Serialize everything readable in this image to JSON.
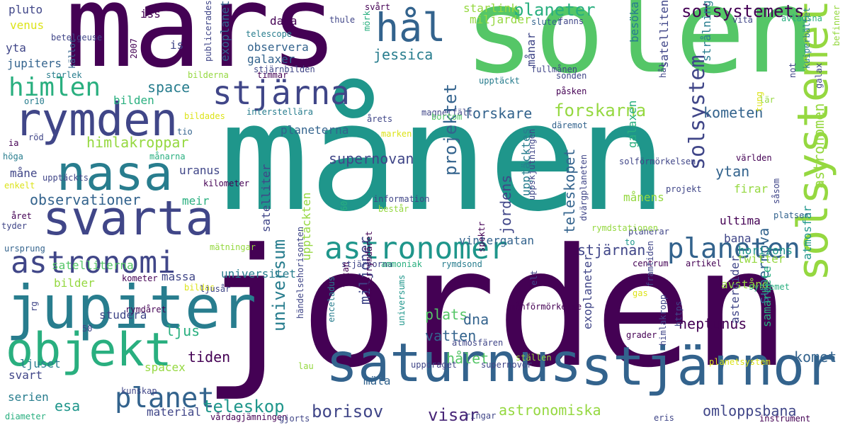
{
  "palette": [
    "#440154",
    "#482677",
    "#404688",
    "#33638d",
    "#287d8e",
    "#1f968b",
    "#29af7f",
    "#55c667",
    "#95d840",
    "#dce319"
  ],
  "words": [
    {
      "text": "månen",
      "color": "#1f968b"
    },
    {
      "text": "jorden",
      "color": "#440154"
    },
    {
      "text": "solen",
      "color": "#55c667"
    },
    {
      "text": "mars",
      "color": "#440154"
    },
    {
      "text": "saturnus",
      "color": "#33638d"
    },
    {
      "text": "stjärnor",
      "color": "#33638d"
    },
    {
      "text": "jupiter",
      "color": "#287d8e"
    },
    {
      "text": "objekt",
      "color": "#29af7f"
    },
    {
      "text": "svarta",
      "color": "#404688"
    },
    {
      "text": "rymden",
      "color": "#404688"
    },
    {
      "text": "nasa",
      "color": "#287d8e"
    },
    {
      "text": "solsystemet",
      "color": "#95d840"
    },
    {
      "text": "stjärna",
      "color": "#404688"
    },
    {
      "text": "hål",
      "color": "#33638d"
    },
    {
      "text": "astronomer",
      "color": "#1f968b"
    },
    {
      "text": "astronomi",
      "color": "#404688"
    },
    {
      "text": "planet",
      "color": "#33638d"
    },
    {
      "text": "planeten",
      "color": "#33638d"
    },
    {
      "text": "himlen",
      "color": "#29af7f"
    },
    {
      "text": "solsystem",
      "color": "#404688"
    },
    {
      "text": "solsystemets",
      "color": "#440154"
    },
    {
      "text": "planeter",
      "color": "#29af7f"
    },
    {
      "text": "forskarna",
      "color": "#95d840"
    },
    {
      "text": "projektet",
      "color": "#33638d"
    },
    {
      "text": "universum",
      "color": "#287d8e"
    },
    {
      "text": "teleskop",
      "color": "#1f968b"
    },
    {
      "text": "borisov",
      "color": "#404688"
    },
    {
      "text": "visar",
      "color": "#482677"
    },
    {
      "text": "astronomiska",
      "color": "#95d840"
    },
    {
      "text": "omloppsbana",
      "color": "#404688"
    },
    {
      "text": "esa",
      "color": "#1f968b"
    },
    {
      "text": "supernova",
      "color": "#33638d"
    },
    {
      "text": "neptunus",
      "color": "#440154"
    },
    {
      "text": "komet",
      "color": "#33638d"
    },
    {
      "text": "observationer",
      "color": "#33638d"
    },
    {
      "text": "himlakroppar",
      "color": "#95d840"
    },
    {
      "text": "teleskopet",
      "color": "#33638d"
    },
    {
      "text": "jordens",
      "color": "#404688"
    },
    {
      "text": "miljoner",
      "color": "#404688"
    },
    {
      "text": "forskare",
      "color": "#33638d"
    },
    {
      "text": "kometen",
      "color": "#33638d"
    },
    {
      "text": "stjärnan",
      "color": "#404688"
    },
    {
      "text": "astronomen",
      "color": "#95d840"
    },
    {
      "text": "ytan",
      "color": "#33638d"
    },
    {
      "text": "jessica",
      "color": "#287d8e"
    },
    {
      "text": "space",
      "color": "#287d8e"
    },
    {
      "text": "plats",
      "color": "#55c667"
    },
    {
      "text": "tiden",
      "color": "#440154"
    },
    {
      "text": "ljus",
      "color": "#29af7f"
    },
    {
      "text": "dna",
      "color": "#33638d"
    },
    {
      "text": "vatten",
      "color": "#33638d"
    },
    {
      "text": "hålet",
      "color": "#55c667"
    },
    {
      "text": "mäta",
      "color": "#33638d"
    },
    {
      "text": "bilder",
      "color": "#95d840"
    },
    {
      "text": "massa",
      "color": "#404688"
    },
    {
      "text": "studera",
      "color": "#404688"
    },
    {
      "text": "svart",
      "color": "#404688"
    },
    {
      "text": "serien",
      "color": "#287d8e"
    },
    {
      "text": "material",
      "color": "#404688"
    },
    {
      "text": "spacex",
      "color": "#95d840"
    },
    {
      "text": "ljuset",
      "color": "#287d8e"
    },
    {
      "text": "universitet",
      "color": "#287d8e"
    },
    {
      "text": "satelliterna",
      "color": "#55c667"
    },
    {
      "text": "planeterna",
      "color": "#33638d"
    },
    {
      "text": "observera",
      "color": "#33638d"
    },
    {
      "text": "data",
      "color": "#440154"
    },
    {
      "text": "exoplanet",
      "color": "#33638d"
    },
    {
      "text": "galaxer",
      "color": "#33638d"
    },
    {
      "text": "venus",
      "color": "#dce319"
    },
    {
      "text": "pluto",
      "color": "#404688"
    },
    {
      "text": "yta",
      "color": "#404688"
    },
    {
      "text": "jupiters",
      "color": "#33638d"
    },
    {
      "text": "måne",
      "color": "#404688"
    },
    {
      "text": "uranus",
      "color": "#404688"
    },
    {
      "text": "meir",
      "color": "#29af7f"
    },
    {
      "text": "satelliter",
      "color": "#404688"
    },
    {
      "text": "upptäckten",
      "color": "#95d840"
    },
    {
      "text": "upptäcktes",
      "color": "#287d8e"
    },
    {
      "text": "exoplaneter",
      "color": "#404688"
    },
    {
      "text": "galaxen",
      "color": "#29af7f"
    },
    {
      "text": "avstånd",
      "color": "#95d840"
    },
    {
      "text": "månens",
      "color": "#95d840"
    },
    {
      "text": "firar",
      "color": "#95d840"
    },
    {
      "text": "ultima",
      "color": "#440154"
    },
    {
      "text": "bana",
      "color": "#404688"
    },
    {
      "text": "horizons",
      "color": "#1f968b"
    },
    {
      "text": "twitter",
      "color": "#95d840"
    },
    {
      "text": "atmosfär",
      "color": "#1f968b"
    },
    {
      "text": "samarbete",
      "color": "#29af7f"
    },
    {
      "text": "asteroider",
      "color": "#404688"
    },
    {
      "text": "vintergatan",
      "color": "#33638d"
    },
    {
      "text": "månar",
      "color": "#404688"
    },
    {
      "text": "miljarder",
      "color": "#95d840"
    },
    {
      "text": "starlink",
      "color": "#95d840"
    },
    {
      "text": "bilden",
      "color": "#29af7f"
    },
    {
      "text": "is",
      "color": "#404688"
    },
    {
      "text": "iss",
      "color": "#440154"
    },
    {
      "text": "telescope",
      "color": "#287d8e"
    },
    {
      "text": "betelgeuse",
      "color": "#404688"
    },
    {
      "text": "thule",
      "color": "#404688"
    },
    {
      "text": "mörk",
      "color": "#29af7f"
    },
    {
      "text": "svårt",
      "color": "#440154"
    },
    {
      "text": "slutet",
      "color": "#33638d"
    },
    {
      "text": "fanns",
      "color": "#404688"
    },
    {
      "text": "vita",
      "color": "#404688"
    },
    {
      "text": "avlägsna",
      "color": "#29af7f"
    },
    {
      "text": "befinner",
      "color": "#95d840"
    },
    {
      "text": "fullmånen",
      "color": "#404688"
    },
    {
      "text": "sonden",
      "color": "#404688"
    },
    {
      "text": "påsken",
      "color": "#440154"
    },
    {
      "text": "besöka",
      "color": "#287d8e"
    },
    {
      "text": "strålning",
      "color": "#287d8e"
    },
    {
      "text": "satelliten",
      "color": "#404688"
    },
    {
      "text": "hål",
      "color": "#404688"
    },
    {
      "text": "tung",
      "color": "#dce319"
    },
    {
      "text": "lär",
      "color": "#95d840"
    },
    {
      "text": "not",
      "color": "#404688"
    },
    {
      "text": "kuiperbältet",
      "color": "#287d8e"
    },
    {
      "text": "galax",
      "color": "#404688"
    },
    {
      "text": "magnetfält",
      "color": "#404688"
    },
    {
      "text": "upptäckt",
      "color": "#287d8e"
    },
    {
      "text": "2007",
      "color": "#440154"
    },
    {
      "text": "publicerades",
      "color": "#404688"
    },
    {
      "text": "timmar",
      "color": "#440154"
    },
    {
      "text": "stjärnbilden",
      "color": "#404688"
    },
    {
      "text": "bilderna",
      "color": "#95d840"
    },
    {
      "text": "källor",
      "color": "#33638d"
    },
    {
      "text": "storlek",
      "color": "#287d8e"
    },
    {
      "text": "or10",
      "color": "#287d8e"
    },
    {
      "text": "interstellära",
      "color": "#287d8e"
    },
    {
      "text": "tio",
      "color": "#33638d"
    },
    {
      "text": "bildades",
      "color": "#dce319"
    },
    {
      "text": "årets",
      "color": "#404688"
    },
    {
      "text": "bortom",
      "color": "#55c667"
    },
    {
      "text": "marken",
      "color": "#dce319"
    },
    {
      "text": "däremot",
      "color": "#33638d"
    },
    {
      "text": "ia",
      "color": "#440154"
    },
    {
      "text": "röd",
      "color": "#404688"
    },
    {
      "text": "höga",
      "color": "#287d8e"
    },
    {
      "text": "upptäckts",
      "color": "#404688"
    },
    {
      "text": "månarna",
      "color": "#29af7f"
    },
    {
      "text": "enkelt",
      "color": "#dce319"
    },
    {
      "text": "supernovan",
      "color": "#404688"
    },
    {
      "text": "kilometer",
      "color": "#440154"
    },
    {
      "text": "året",
      "color": "#440154"
    },
    {
      "text": "tyder",
      "color": "#404688"
    },
    {
      "text": "ursprung",
      "color": "#33638d"
    },
    {
      "text": "mätningar",
      "color": "#95d840"
    },
    {
      "text": "kometer",
      "color": "#440154"
    },
    {
      "text": "bildas",
      "color": "#dce319"
    },
    {
      "text": "ljusår",
      "color": "#404688"
    },
    {
      "text": "rymdåret",
      "color": "#440154"
    },
    {
      "text": "rg",
      "color": "#404688"
    },
    {
      "text": "50",
      "color": "#404688"
    },
    {
      "text": "kunskap",
      "color": "#404688"
    },
    {
      "text": "diameter",
      "color": "#29af7f"
    },
    {
      "text": "vårdagjämningen",
      "color": "#440154"
    },
    {
      "text": "information",
      "color": "#404688"
    },
    {
      "text": "består",
      "color": "#95d840"
    },
    {
      "text": "60",
      "color": "#29af7f"
    },
    {
      "text": "stjärnorna",
      "color": "#404688"
    },
    {
      "text": "ammoniak",
      "color": "#29af7f"
    },
    {
      "text": "rymdsond",
      "color": "#287d8e"
    },
    {
      "text": "centrum",
      "color": "#440154"
    },
    {
      "text": "artikel",
      "color": "#440154"
    },
    {
      "text": "spektr",
      "color": "#440154"
    },
    {
      "text": "månförmörkelse",
      "color": "#440154"
    },
    {
      "text": "elt",
      "color": "#404688"
    },
    {
      "text": "universums",
      "color": "#1f968b"
    },
    {
      "text": "superrymdåret",
      "color": "#440154"
    },
    {
      "text": "enceladus",
      "color": "#287d8e"
    },
    {
      "text": "titan",
      "color": "#440154"
    },
    {
      "text": "händelsehorisonten",
      "color": "#404688"
    },
    {
      "text": "atmosfären",
      "color": "#404688"
    },
    {
      "text": "ställen",
      "color": "#95d840"
    },
    {
      "text": "supernovor",
      "color": "#404688"
    },
    {
      "text": "uppdraget",
      "color": "#404688"
    },
    {
      "text": "ringar",
      "color": "#404688"
    },
    {
      "text": "gjorts",
      "color": "#404688"
    },
    {
      "text": "lau",
      "color": "#95d840"
    },
    {
      "text": "gas",
      "color": "#dce319"
    },
    {
      "text": "grader",
      "color": "#440154"
    },
    {
      "text": "framtiden",
      "color": "#404688"
    },
    {
      "text": "himlakropp",
      "color": "#404688"
    },
    {
      "text": "https",
      "color": "#404688"
    },
    {
      "text": "planetsystem",
      "color": "#dce319"
    },
    {
      "text": "systemet",
      "color": "#29af7f"
    },
    {
      "text": "eris",
      "color": "#404688"
    },
    {
      "text": "instrument",
      "color": "#440154"
    },
    {
      "text": "solförmörkelsen",
      "color": "#404688"
    },
    {
      "text": "projekt",
      "color": "#404688"
    },
    {
      "text": "världen",
      "color": "#440154"
    },
    {
      "text": "planerar",
      "color": "#404688"
    },
    {
      "text": "platser",
      "color": "#33638d"
    },
    {
      "text": "såsom",
      "color": "#404688"
    },
    {
      "text": "dvärgplaneten",
      "color": "#404688"
    },
    {
      "text": "uppskjutningen",
      "color": "#404688"
    },
    {
      "text": "rymdstationen",
      "color": "#95d840"
    },
    {
      "text": "to",
      "color": "#1f968b"
    },
    {
      "text": "kometens",
      "color": "#29af7f"
    }
  ]
}
